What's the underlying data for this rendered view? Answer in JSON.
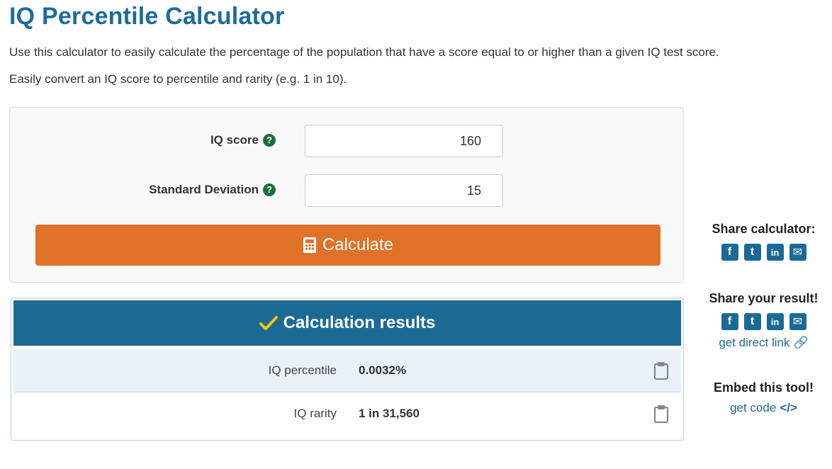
{
  "page": {
    "title": "IQ Percentile Calculator",
    "intro_1": "Use this calculator to easily calculate the percentage of the population that have a score equal to or higher than a given IQ test score.",
    "intro_2": "Easily convert an IQ score to percentile and rarity (e.g. 1 in 10)."
  },
  "form": {
    "iq_score_label": "IQ score",
    "iq_score_value": "160",
    "sd_label": "Standard Deviation",
    "sd_value": "15",
    "help_icon": "question-circle-icon",
    "calculate_label": "Calculate",
    "calculate_icon": "calculator-icon"
  },
  "results": {
    "header": "Calculation results",
    "header_icon": "checkmark-icon",
    "rows": [
      {
        "label": "IQ percentile",
        "value": "0.0032%"
      },
      {
        "label": "IQ rarity",
        "value": "1 in 31,560"
      }
    ],
    "copy_icon": "clipboard-icon"
  },
  "sidebar": {
    "share_calculator": "Share calculator:",
    "share_result": "Share your result!",
    "direct_link": "get direct link",
    "embed_heading": "Embed this tool!",
    "embed_link": "get code",
    "share_icons": [
      "facebook-icon",
      "twitter-icon",
      "linkedin-icon",
      "email-icon"
    ]
  },
  "colors": {
    "title": "#1e6b9a",
    "button": "#e07228",
    "results_header": "#1b6a96",
    "checkmark": "#f1c40f",
    "help_icon": "#1d6e3a",
    "row_highlight": "#e8f1f7"
  }
}
